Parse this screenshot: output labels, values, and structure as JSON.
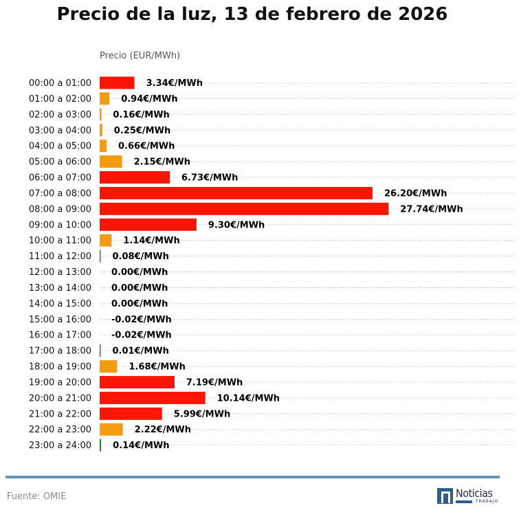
{
  "chart_data": {
    "type": "bar",
    "orientation": "horizontal",
    "title": "Precio de la luz, 13 de febrero de 2026",
    "xlabel": "",
    "ylabel": "Precio (EUR/MWh)",
    "xlim": [
      0,
      29.5
    ],
    "grid": "horizontal dotted",
    "categories": [
      "00:00 a 01:00",
      "01:00 a 02:00",
      "02:00 a 03:00",
      "03:00 a 04:00",
      "04:00 a 05:00",
      "05:00 a 06:00",
      "06:00 a 07:00",
      "07:00 a 08:00",
      "08:00 a 09:00",
      "09:00 a 10:00",
      "10:00 a 11:00",
      "11:00 a 12:00",
      "12:00 a 13:00",
      "13:00 a 14:00",
      "14:00 a 15:00",
      "15:00 a 16:00",
      "16:00 a 17:00",
      "17:00 a 18:00",
      "18:00 a 19:00",
      "19:00 a 20:00",
      "20:00 a 21:00",
      "21:00 a 22:00",
      "22:00 a 23:00",
      "23:00 a 24:00"
    ],
    "values": [
      3.34,
      0.94,
      0.16,
      0.25,
      0.66,
      2.15,
      6.73,
      26.2,
      27.74,
      9.3,
      1.14,
      0.08,
      0.0,
      0.0,
      0.0,
      -0.02,
      -0.02,
      0.01,
      1.68,
      7.19,
      10.14,
      5.99,
      2.22,
      0.14
    ],
    "data_labels": [
      "3.34€/MWh",
      "0.94€/MWh",
      "0.16€/MWh",
      "0.25€/MWh",
      "0.66€/MWh",
      "2.15€/MWh",
      "6.73€/MWh",
      "26.20€/MWh",
      "27.74€/MWh",
      "9.30€/MWh",
      "1.14€/MWh",
      "0.08€/MWh",
      "0.00€/MWh",
      "0.00€/MWh",
      "0.00€/MWh",
      "-0.02€/MWh",
      "-0.02€/MWh",
      "0.01€/MWh",
      "1.68€/MWh",
      "7.19€/MWh",
      "10.14€/MWh",
      "5.99€/MWh",
      "2.22€/MWh",
      "0.14€/MWh"
    ],
    "colors": {
      "high": "#fa1505",
      "medium": "#f39c12",
      "low": "#2e7d32",
      "grid": "#bbbbbb"
    },
    "bar_color_levels": [
      "high",
      "medium",
      "medium",
      "medium",
      "medium",
      "medium",
      "high",
      "high",
      "high",
      "high",
      "medium",
      "low",
      "low",
      "low",
      "low",
      "low",
      "low",
      "low",
      "medium",
      "high",
      "high",
      "high",
      "medium",
      "low"
    ]
  },
  "footer": {
    "source": "Fuente: OMIE",
    "logo_text": "Noticias",
    "logo_subtext": "TRABAJO"
  },
  "colors": {
    "rule": "#6396b5",
    "logo": "#2e5f86"
  }
}
